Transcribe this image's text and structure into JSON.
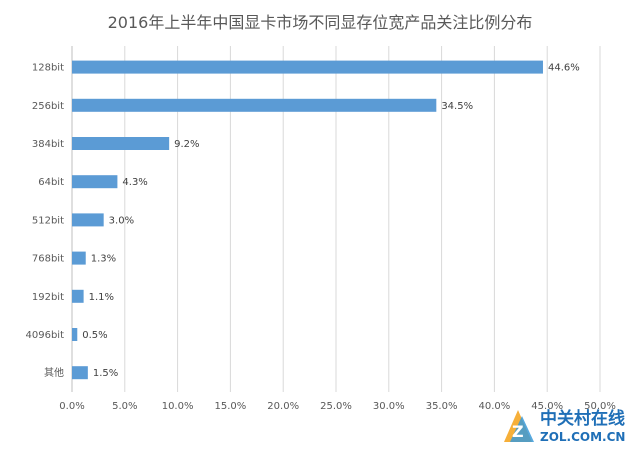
{
  "chart_data": {
    "type": "bar",
    "orientation": "horizontal",
    "title": "2016年上半年中国显卡市场不同显存位宽产品关注比例分布",
    "categories": [
      "128bit",
      "256bit",
      "384bit",
      "64bit",
      "512bit",
      "768bit",
      "192bit",
      "4096bit",
      "其他"
    ],
    "values": [
      44.6,
      34.5,
      9.2,
      4.3,
      3.0,
      1.3,
      1.1,
      0.5,
      1.5
    ],
    "value_labels": [
      "44.6%",
      "34.5%",
      "9.2%",
      "4.3%",
      "3.0%",
      "1.3%",
      "1.1%",
      "0.5%",
      "1.5%"
    ],
    "xlim": [
      0,
      50
    ],
    "xticks": [
      0,
      5,
      10,
      15,
      20,
      25,
      30,
      35,
      40,
      45,
      50
    ],
    "xtick_labels": [
      "0.0%",
      "5.0%",
      "10.0%",
      "15.0%",
      "20.0%",
      "25.0%",
      "30.0%",
      "35.0%",
      "40.0%",
      "45.0%",
      "50.0%"
    ],
    "grid": true,
    "bar_color": "#5b9bd5",
    "xlabel": "",
    "ylabel": ""
  },
  "watermark": {
    "cn": "中关村在线",
    "en": "ZOL.COM.CN"
  }
}
